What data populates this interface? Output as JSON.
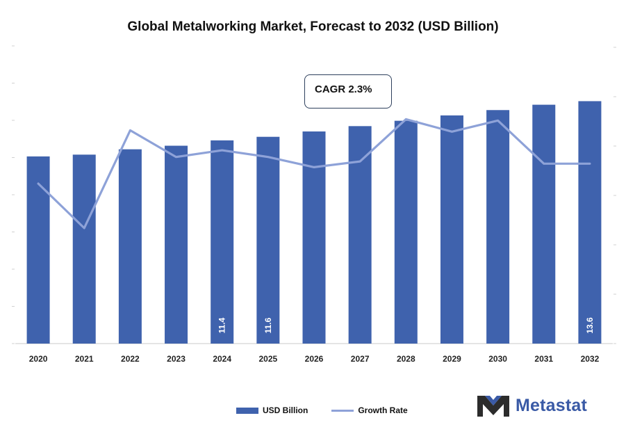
{
  "colors": {
    "bar": "#3f62ad",
    "line": "#8ea2d8",
    "axis": "#c8c8c8",
    "logo_dark": "#2c2c2c",
    "logo_blue": "#3a5aa6"
  },
  "chart_data": {
    "type": "bar",
    "title": "Global Metalworking Market, Forecast to 2032 (USD Billion)",
    "xlabel": "",
    "ylabel": "",
    "categories": [
      "2020",
      "2021",
      "2022",
      "2023",
      "2024",
      "2025",
      "2026",
      "2027",
      "2028",
      "2029",
      "2030",
      "2031",
      "2032"
    ],
    "ylim": [
      0,
      16.7
    ],
    "series": [
      {
        "name": "USD Billion",
        "type": "bar",
        "values": [
          10.5,
          10.6,
          10.9,
          11.1,
          11.4,
          11.6,
          11.9,
          12.2,
          12.5,
          12.8,
          13.1,
          13.4,
          13.6
        ],
        "labels": [
          "",
          "",
          "",
          "",
          "11.4",
          "11.6",
          "",
          "",
          "",
          "",
          "",
          "",
          "13.6"
        ]
      },
      {
        "name": "Growth Rate",
        "type": "line",
        "values": [
          1.8,
          0.8,
          3.0,
          2.4,
          2.55,
          2.4,
          2.17,
          2.3,
          3.25,
          2.97,
          3.22,
          2.25,
          2.25
        ]
      }
    ],
    "y2lim": [
      -1.8,
      4.9
    ],
    "legend": "bottom-center",
    "annotation": "CAGR 2.3%"
  },
  "logo": {
    "text": "Metastat"
  }
}
